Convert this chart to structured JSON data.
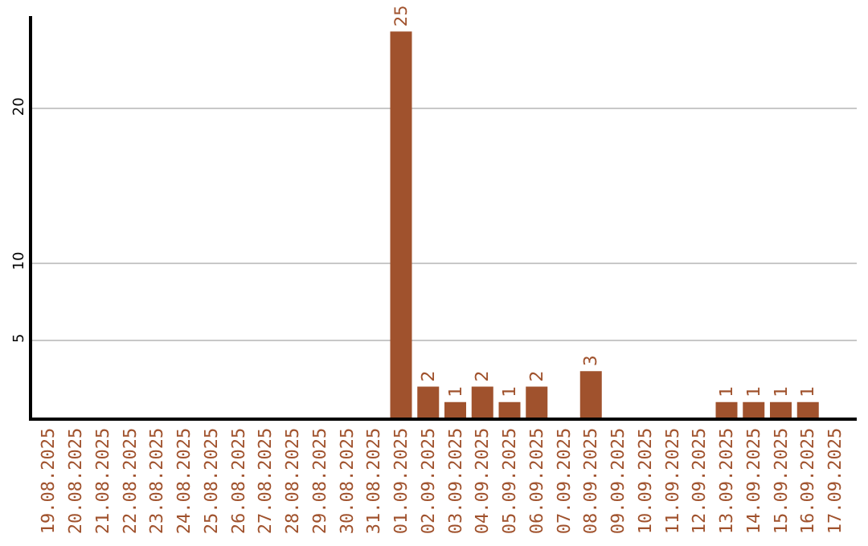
{
  "chart_data": {
    "type": "bar",
    "categories": [
      "19.08.2025",
      "20.08.2025",
      "21.08.2025",
      "22.08.2025",
      "23.08.2025",
      "24.08.2025",
      "25.08.2025",
      "26.08.2025",
      "27.08.2025",
      "28.08.2025",
      "29.08.2025",
      "30.08.2025",
      "31.08.2025",
      "01.09.2025",
      "02.09.2025",
      "03.09.2025",
      "04.09.2025",
      "05.09.2025",
      "06.09.2025",
      "07.09.2025",
      "08.09.2025",
      "09.09.2025",
      "10.09.2025",
      "11.09.2025",
      "12.09.2025",
      "13.09.2025",
      "14.09.2025",
      "15.09.2025",
      "16.09.2025",
      "17.09.2025"
    ],
    "values": [
      0,
      0,
      0,
      0,
      0,
      0,
      0,
      0,
      0,
      0,
      0,
      0,
      0,
      25,
      2,
      1,
      2,
      1,
      2,
      0,
      3,
      0,
      0,
      0,
      0,
      1,
      1,
      1,
      1,
      0
    ],
    "value_labels": [
      null,
      null,
      null,
      null,
      null,
      null,
      null,
      null,
      null,
      null,
      null,
      null,
      null,
      "25",
      "2",
      "1",
      "2",
      "1",
      "2",
      null,
      "3",
      null,
      null,
      null,
      null,
      "1",
      "1",
      "1",
      "1",
      null
    ],
    "color": "#a0522d",
    "ylim": [
      0,
      26
    ],
    "yticks": [
      5,
      10,
      20
    ],
    "grid": "y",
    "legend": false
  }
}
